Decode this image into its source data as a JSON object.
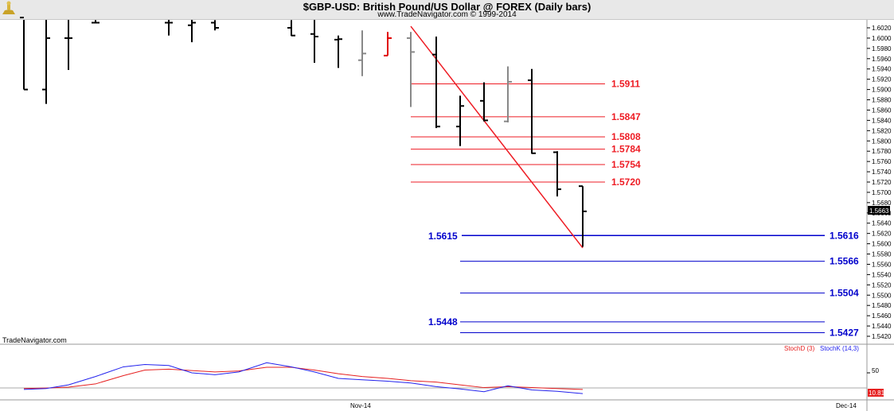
{
  "header": {
    "title": "$GBP-USD:  British Pound/US Dollar @ FOREX  (Daily bars)",
    "subtitle": "www.TradeNavigator.com © 1999-2014"
  },
  "watermark": "TradeNavigator.com",
  "colors": {
    "resistance": "#ee1c24",
    "support": "#0000cc",
    "bar": "#000000",
    "bar_alt": "#888888",
    "bar_red": "#e00000",
    "stoch_d": "#e62020",
    "stoch_k": "#2222ee"
  },
  "chart_data": [
    {
      "type": "ohlc",
      "title": "$GBP-USD:  British Pound/US Dollar @ FOREX  (Daily bars)",
      "ylim": [
        1.541,
        1.603
      ],
      "y_ticks": [
        "1.6020",
        "1.6000",
        "1.5980",
        "1.5960",
        "1.5940",
        "1.5920",
        "1.5900",
        "1.5880",
        "1.5860",
        "1.5840",
        "1.5820",
        "1.5800",
        "1.5780",
        "1.5760",
        "1.5740",
        "1.5720",
        "1.5700",
        "1.5680",
        "1.5660",
        "1.5640",
        "1.5620",
        "1.5600",
        "1.5580",
        "1.5560",
        "1.5540",
        "1.5520",
        "1.5500",
        "1.5480",
        "1.5460",
        "1.5440",
        "1.5420"
      ],
      "x_labels": [
        "Nov-14",
        "Dec-14"
      ],
      "last_price_label": "1.5663",
      "bars": [
        {
          "x": 30,
          "o": 1.604,
          "h": 1.604,
          "l": 1.59,
          "c": 1.59,
          "color": "black"
        },
        {
          "x": 58,
          "o": 1.59,
          "h": 1.604,
          "l": 1.5872,
          "c": 1.6,
          "color": "black"
        },
        {
          "x": 86,
          "o": 1.6,
          "h": 1.604,
          "l": 1.5938,
          "c": 1.6,
          "color": "black"
        },
        {
          "x": 120,
          "o": 1.603,
          "h": 1.6035,
          "l": 1.603,
          "c": 1.603,
          "color": "black"
        },
        {
          "x": 212,
          "o": 1.603,
          "h": 1.604,
          "l": 1.6005,
          "c": 1.603,
          "color": "black"
        },
        {
          "x": 241,
          "o": 1.6025,
          "h": 1.604,
          "l": 1.5992,
          "c": 1.603,
          "color": "black"
        },
        {
          "x": 270,
          "o": 1.603,
          "h": 1.6035,
          "l": 1.6015,
          "c": 1.602,
          "color": "black"
        },
        {
          "x": 366,
          "o": 1.602,
          "h": 1.6035,
          "l": 1.6004,
          "c": 1.6005,
          "color": "black"
        },
        {
          "x": 395,
          "o": 1.6008,
          "h": 1.604,
          "l": 1.5952,
          "c": 1.6003,
          "color": "black"
        },
        {
          "x": 425,
          "o": 1.5997,
          "h": 1.6005,
          "l": 1.5942,
          "c": 1.5998,
          "color": "black"
        },
        {
          "x": 455,
          "o": 1.5957,
          "h": 1.6015,
          "l": 1.5926,
          "c": 1.597,
          "color": "gray"
        },
        {
          "x": 487,
          "o": 1.5966,
          "h": 1.6012,
          "l": 1.5966,
          "c": 1.6,
          "color": "red"
        },
        {
          "x": 516,
          "o": 1.6,
          "h": 1.6012,
          "l": 1.5866,
          "c": 1.5973,
          "color": "gray"
        },
        {
          "x": 548,
          "o": 1.5968,
          "h": 1.6003,
          "l": 1.5825,
          "c": 1.5828,
          "color": "black"
        },
        {
          "x": 578,
          "o": 1.5828,
          "h": 1.5888,
          "l": 1.579,
          "c": 1.5868,
          "color": "black"
        },
        {
          "x": 608,
          "o": 1.5878,
          "h": 1.5914,
          "l": 1.5838,
          "c": 1.584,
          "color": "black"
        },
        {
          "x": 638,
          "o": 1.5838,
          "h": 1.5945,
          "l": 1.5836,
          "c": 1.5915,
          "color": "gray"
        },
        {
          "x": 668,
          "o": 1.5918,
          "h": 1.594,
          "l": 1.5775,
          "c": 1.5776,
          "color": "black"
        },
        {
          "x": 700,
          "o": 1.5778,
          "h": 1.578,
          "l": 1.5692,
          "c": 1.5706,
          "color": "black"
        },
        {
          "x": 732,
          "o": 1.5712,
          "h": 1.5712,
          "l": 1.5594,
          "c": 1.5663,
          "color": "black"
        }
      ],
      "trendline": {
        "from": {
          "x": 516,
          "y": 1.6023
        },
        "to": {
          "x": 732,
          "y": 1.5592
        }
      },
      "resistance_levels": [
        {
          "value": 1.5911,
          "label": "1.5911"
        },
        {
          "value": 1.5847,
          "label": "1.5847"
        },
        {
          "value": 1.5808,
          "label": "1.5808"
        },
        {
          "value": 1.5784,
          "label": "1.5784"
        },
        {
          "value": 1.5754,
          "label": "1.5754"
        },
        {
          "value": 1.572,
          "label": "1.5720"
        }
      ],
      "support_levels": [
        {
          "value": 1.5616,
          "label": "1.5616",
          "start": "early"
        },
        {
          "value": 1.5566,
          "label": "1.5566",
          "start": "late"
        },
        {
          "value": 1.5504,
          "label": "1.5504",
          "start": "late"
        },
        {
          "value": 1.5427,
          "label": "1.5427",
          "start": "late"
        }
      ],
      "support_left_labels": [
        {
          "value": 1.5615,
          "label": "1.5615"
        },
        {
          "value": 1.5448,
          "label": "1.5448"
        }
      ],
      "extra_line": {
        "value": 1.5448
      }
    },
    {
      "type": "line",
      "legend": [
        "StochD (3)",
        "StochK (14,3)"
      ],
      "ylim": [
        0,
        100
      ],
      "y_ticks": [
        "50"
      ],
      "last_value_label": "10.81",
      "x": [
        30,
        58,
        86,
        120,
        155,
        182,
        212,
        241,
        270,
        300,
        335,
        366,
        395,
        425,
        455,
        487,
        516,
        548,
        578,
        608,
        638,
        668,
        700,
        732
      ],
      "series": [
        {
          "name": "StochD (3)",
          "color": "red",
          "values": [
            16,
            17,
            19,
            26,
            44,
            56,
            58,
            55,
            52,
            54,
            62,
            62,
            56,
            48,
            42,
            38,
            33,
            30,
            24,
            18,
            20,
            18,
            16,
            14
          ]
        },
        {
          "name": "StochK (14,3)",
          "color": "blue",
          "values": [
            14,
            16,
            24,
            42,
            63,
            68,
            66,
            50,
            46,
            52,
            72,
            63,
            52,
            38,
            35,
            32,
            28,
            20,
            15,
            9,
            22,
            13,
            10,
            5
          ]
        }
      ]
    }
  ]
}
